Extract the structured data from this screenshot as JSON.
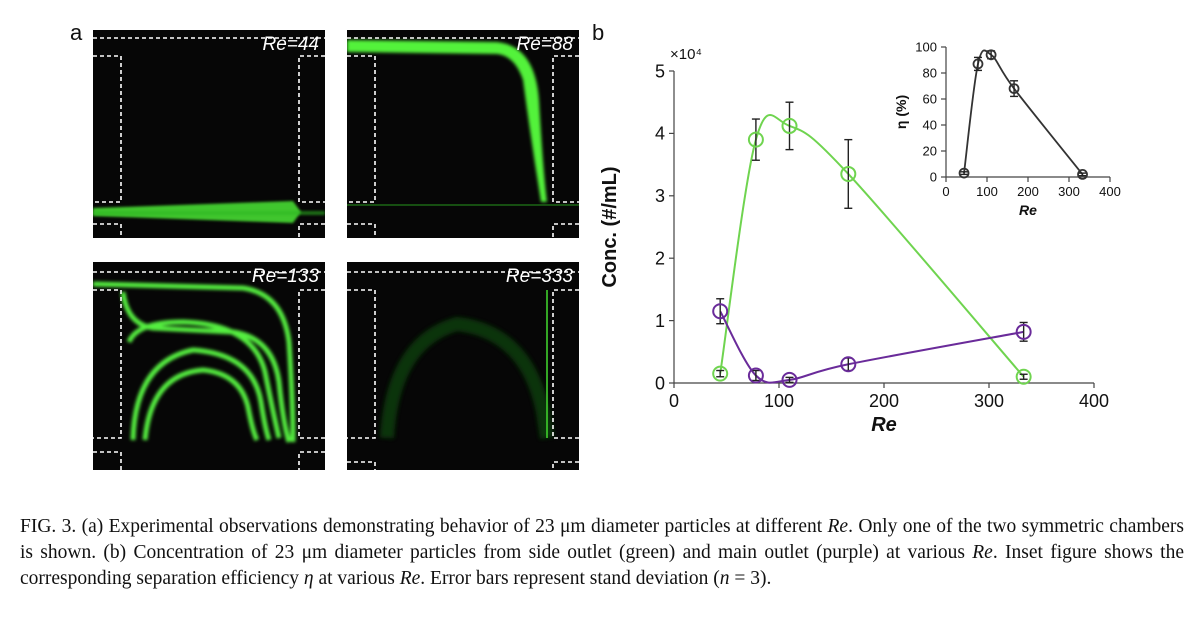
{
  "panel_a": {
    "letter": "a",
    "images": [
      {
        "label": "Re=44"
      },
      {
        "label": "Re=88"
      },
      {
        "label": "Re=133"
      },
      {
        "label": "Re=333"
      }
    ]
  },
  "panel_b": {
    "letter": "b"
  },
  "chart_data": [
    {
      "type": "line",
      "xlabel": "Re",
      "ylabel": "Conc. (#/mL)",
      "y_multiplier": "×10⁴",
      "xlim": [
        0,
        400
      ],
      "ylim": [
        0,
        5
      ],
      "xticks": [
        0,
        100,
        200,
        300,
        400
      ],
      "yticks": [
        0,
        1,
        2,
        3,
        4,
        5
      ],
      "series": [
        {
          "color": "#6fd44f",
          "x": [
            44,
            78,
            110,
            166,
            333
          ],
          "y": [
            0.15,
            3.9,
            4.12,
            3.35,
            0.1
          ],
          "err": [
            0.05,
            0.33,
            0.38,
            0.55,
            0.04
          ]
        },
        {
          "color": "#6a2b9a",
          "x": [
            44,
            78,
            110,
            166,
            333
          ],
          "y": [
            1.15,
            0.12,
            0.05,
            0.3,
            0.82
          ],
          "err": [
            0.2,
            0.08,
            0.04,
            0.1,
            0.15
          ]
        }
      ]
    },
    {
      "type": "line",
      "inset": true,
      "xlabel": "Re",
      "ylabel": "η (%)",
      "xlim": [
        0,
        400
      ],
      "ylim": [
        0,
        100
      ],
      "xticks": [
        0,
        100,
        200,
        300,
        400
      ],
      "yticks": [
        0,
        20,
        40,
        60,
        80,
        100
      ],
      "series": [
        {
          "color": "#333333",
          "x": [
            44,
            78,
            110,
            166,
            333
          ],
          "y": [
            3,
            87,
            94,
            68,
            2
          ],
          "err": [
            1,
            5,
            3,
            6,
            1
          ]
        }
      ]
    }
  ],
  "caption": {
    "prefix": "FIG. 3. (a) Experimental observations demonstrating behavior of 23 μm diameter particles at different ",
    "re1": "Re",
    "mid1": ". Only one of the two symmetric chambers is shown. (b) Concentration of 23 μm diameter particles from side outlet (green) and main outlet (purple) at various ",
    "re2": "Re",
    "mid2": ". Inset figure shows the corresponding separation efficiency ",
    "eta": "η",
    "mid3": " at various ",
    "re3": "Re",
    "suffix": ". Error bars represent stand deviation (",
    "n": "n",
    "end": " = 3)."
  }
}
